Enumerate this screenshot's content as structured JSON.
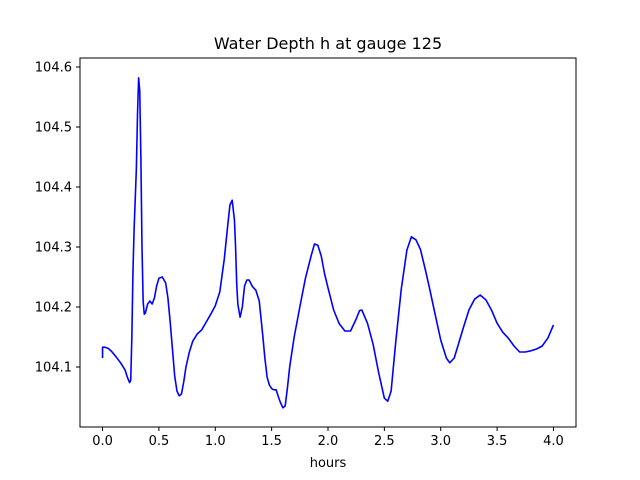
{
  "chart_data": {
    "type": "line",
    "title": "Water Depth h at gauge 125",
    "xlabel": "hours",
    "ylabel": "",
    "xlim": [
      -0.2,
      4.2
    ],
    "ylim": [
      104.0,
      104.615
    ],
    "x_ticks": [
      0.0,
      0.5,
      1.0,
      1.5,
      2.0,
      2.5,
      3.0,
      3.5,
      4.0
    ],
    "x_tick_labels": [
      "0.0",
      "0.5",
      "1.0",
      "1.5",
      "2.0",
      "2.5",
      "3.0",
      "3.5",
      "4.0"
    ],
    "y_ticks": [
      104.1,
      104.2,
      104.3,
      104.4,
      104.5,
      104.6
    ],
    "y_tick_labels": [
      "104.1",
      "104.2",
      "104.3",
      "104.4",
      "104.5",
      "104.6"
    ],
    "grid": false,
    "series": [
      {
        "color": "#0000ff",
        "x": [
          0.0,
          0.0,
          0.02,
          0.05,
          0.08,
          0.12,
          0.16,
          0.2,
          0.22,
          0.24,
          0.25,
          0.26,
          0.27,
          0.28,
          0.3,
          0.31,
          0.32,
          0.33,
          0.34,
          0.35,
          0.36,
          0.37,
          0.38,
          0.4,
          0.42,
          0.44,
          0.46,
          0.48,
          0.5,
          0.53,
          0.56,
          0.58,
          0.6,
          0.62,
          0.64,
          0.66,
          0.68,
          0.7,
          0.72,
          0.74,
          0.77,
          0.8,
          0.84,
          0.88,
          0.92,
          0.96,
          1.0,
          1.04,
          1.08,
          1.11,
          1.13,
          1.15,
          1.17,
          1.18,
          1.19,
          1.2,
          1.22,
          1.24,
          1.25,
          1.26,
          1.28,
          1.3,
          1.33,
          1.36,
          1.39,
          1.42,
          1.44,
          1.46,
          1.48,
          1.5,
          1.52,
          1.54,
          1.56,
          1.58,
          1.6,
          1.62,
          1.64,
          1.66,
          1.7,
          1.75,
          1.8,
          1.85,
          1.88,
          1.91,
          1.94,
          1.97,
          2.0,
          2.05,
          2.1,
          2.15,
          2.2,
          2.25,
          2.28,
          2.3,
          2.35,
          2.4,
          2.45,
          2.5,
          2.53,
          2.56,
          2.6,
          2.65,
          2.7,
          2.74,
          2.78,
          2.82,
          2.86,
          2.9,
          2.95,
          3.0,
          3.05,
          3.08,
          3.12,
          3.16,
          3.2,
          3.25,
          3.3,
          3.35,
          3.4,
          3.45,
          3.5,
          3.55,
          3.6,
          3.65,
          3.7,
          3.75,
          3.8,
          3.85,
          3.9,
          3.95,
          4.0
        ],
        "y": [
          104.115,
          104.133,
          104.133,
          104.131,
          104.126,
          104.117,
          104.107,
          104.095,
          104.083,
          104.074,
          104.078,
          104.15,
          104.26,
          104.33,
          104.43,
          104.52,
          104.582,
          104.56,
          104.45,
          104.3,
          104.21,
          104.188,
          104.19,
          104.205,
          104.21,
          104.205,
          104.215,
          104.235,
          104.248,
          104.25,
          104.24,
          104.215,
          104.175,
          104.13,
          104.085,
          104.06,
          104.052,
          104.055,
          104.075,
          104.1,
          104.125,
          104.143,
          104.155,
          104.162,
          104.175,
          104.188,
          104.202,
          104.225,
          104.28,
          104.335,
          104.37,
          104.378,
          104.345,
          104.3,
          104.24,
          104.205,
          104.183,
          104.2,
          104.218,
          104.235,
          104.245,
          104.245,
          104.234,
          104.228,
          104.21,
          104.155,
          104.115,
          104.083,
          104.07,
          104.064,
          104.062,
          104.062,
          104.05,
          104.04,
          104.032,
          104.035,
          104.065,
          104.1,
          104.15,
          104.2,
          104.248,
          104.285,
          104.305,
          104.303,
          104.285,
          104.255,
          104.232,
          104.195,
          104.172,
          104.16,
          104.16,
          104.18,
          104.194,
          104.195,
          104.173,
          104.138,
          104.09,
          104.048,
          104.043,
          104.06,
          104.14,
          104.23,
          104.295,
          104.317,
          104.312,
          104.296,
          104.265,
          104.232,
          104.188,
          104.145,
          104.115,
          104.107,
          104.115,
          104.14,
          104.165,
          104.195,
          104.213,
          104.22,
          104.212,
          104.195,
          104.173,
          104.158,
          104.148,
          104.135,
          104.125,
          104.125,
          104.127,
          104.13,
          104.135,
          104.148,
          104.17
        ]
      }
    ]
  }
}
